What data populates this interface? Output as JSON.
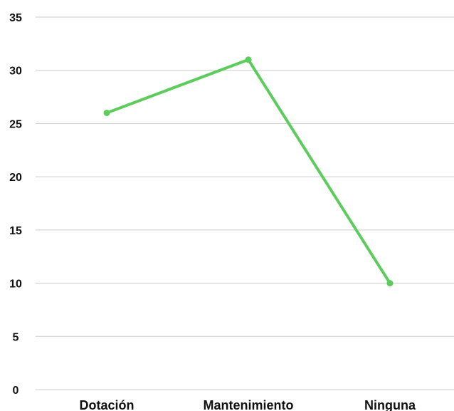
{
  "chart_data": {
    "type": "line",
    "categories": [
      "Dotación",
      "Mantenimiento",
      "Ninguna"
    ],
    "series": [
      {
        "values": [
          26,
          31,
          10
        ],
        "color": "#5ccc5c"
      }
    ],
    "ylim": [
      0,
      35
    ],
    "yticks": [
      "0",
      "5",
      "10",
      "15",
      "20",
      "25",
      "30",
      "35"
    ],
    "title": "",
    "xlabel": "",
    "ylabel": "",
    "grid": true,
    "gridline_color": "#cccccc"
  }
}
